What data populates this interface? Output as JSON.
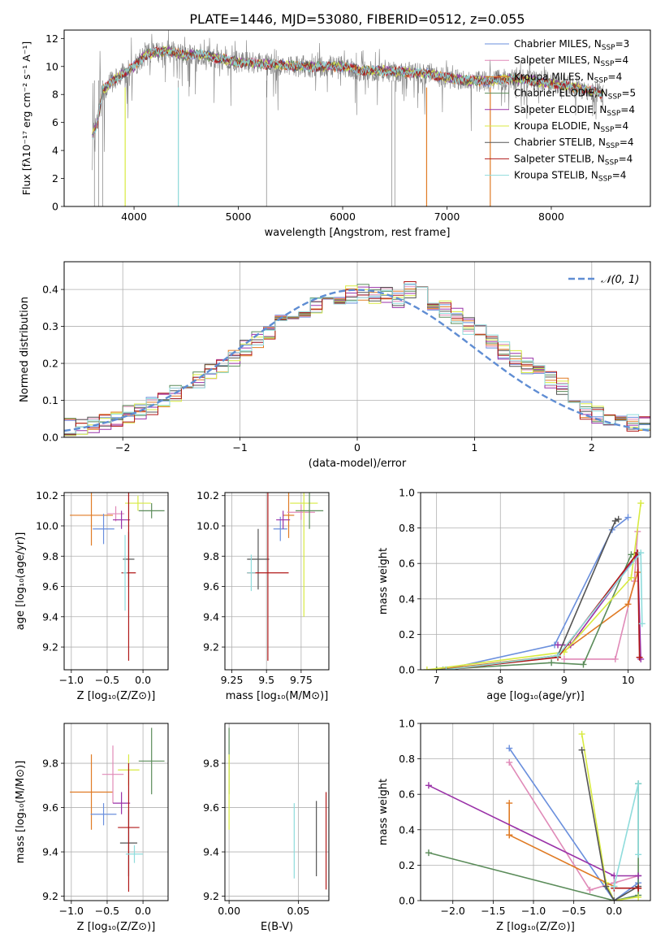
{
  "figure": {
    "title": "PLATE=1446, MJD=53080, FIBERID=0512, z=0.055"
  },
  "colors": {
    "cm": "#6a8fdd",
    "sm": "#e08ab8",
    "km": "#e07b24",
    "ce": "#5b8c5a",
    "se": "#9a32a8",
    "ke": "#d8ea40",
    "cs": "#555555",
    "ss": "#b01818",
    "ks": "#8fdcdc",
    "gauss": "#5f8dd3"
  },
  "chart_data": [
    {
      "id": "spectrum",
      "type": "line",
      "xlabel": "wavelength [Angstrom, rest frame]",
      "ylabel": "Flux [fλ10⁻¹⁷ erg cm⁻² s⁻¹ A⁻¹]",
      "xlim": [
        3330,
        8950
      ],
      "ylim": [
        0,
        12.6
      ],
      "xticks": [
        4000,
        5000,
        6000,
        7000,
        8000
      ],
      "yticks": [
        0,
        2,
        4,
        6,
        8,
        10,
        12
      ],
      "legend_position": "top-right",
      "data_color": "#808080",
      "data_continuum": {
        "x": [
          3600,
          3650,
          3700,
          3800,
          3900,
          4000,
          4100,
          4200,
          4300,
          4400,
          4500,
          4600,
          4800,
          5000,
          5200,
          5400,
          5600,
          5800,
          6000,
          6200,
          6400,
          6600,
          6800,
          7000,
          7200,
          7400,
          7600,
          7800,
          8000,
          8200,
          8400,
          8500
        ],
        "y": [
          5.0,
          6.0,
          8.3,
          9.0,
          9.5,
          10.0,
          10.8,
          11.0,
          11.1,
          11.0,
          10.8,
          10.9,
          10.6,
          10.3,
          10.2,
          10.1,
          10.0,
          10.0,
          10.0,
          9.7,
          9.7,
          9.6,
          9.5,
          9.2,
          9.0,
          8.95,
          9.1,
          9.0,
          8.8,
          8.55,
          8.2,
          8.0
        ]
      },
      "legend": [
        {
          "key": "cm",
          "label": "Chabrier MILES, N",
          "sub": "SSP",
          "tail": "=3"
        },
        {
          "key": "sm",
          "label": "Salpeter MILES, N",
          "sub": "SSP",
          "tail": "=4"
        },
        {
          "key": "km",
          "label": "Kroupa MILES, N",
          "sub": "SSP",
          "tail": "=4"
        },
        {
          "key": "ce",
          "label": "Chabrier ELODIE, N",
          "sub": "SSP",
          "tail": "=5"
        },
        {
          "key": "se",
          "label": "Salpeter ELODIE, N",
          "sub": "SSP",
          "tail": "=4"
        },
        {
          "key": "ke",
          "label": "Kroupa ELODIE, N",
          "sub": "SSP",
          "tail": "=4"
        },
        {
          "key": "cs",
          "label": "Chabrier STELIB, N",
          "sub": "SSP",
          "tail": "=4"
        },
        {
          "key": "ss",
          "label": "Salpeter STELIB, N",
          "sub": "SSP",
          "tail": "=4"
        },
        {
          "key": "ks",
          "label": "Kroupa STELIB, N",
          "sub": "SSP",
          "tail": "=4"
        }
      ]
    },
    {
      "id": "residual-histogram",
      "type": "bar",
      "xlabel": "(data-model)/error",
      "ylabel": "Normed distribution",
      "xlim": [
        -2.5,
        2.5
      ],
      "ylim": [
        0,
        0.475
      ],
      "xticks": [
        -2,
        -1,
        0,
        1,
        2
      ],
      "xtick_labels": [
        "−2",
        "−1",
        "0",
        "1",
        "2"
      ],
      "yticks": [
        0,
        0.1,
        0.2,
        0.3,
        0.4
      ],
      "grid": true,
      "bin_edges_range": [
        -2.5,
        2.5
      ],
      "bin_count": 50,
      "legend": [
        {
          "key": "gauss",
          "label": "𝒩(0, 1)"
        }
      ],
      "legend_position": "top-right",
      "series_keys": [
        "cm",
        "sm",
        "km",
        "ce",
        "se",
        "ke",
        "cs",
        "ss",
        "ks"
      ]
    },
    {
      "id": "age-vs-Z",
      "type": "scatter",
      "xlabel": "Z [log₁₀(Z/Z⊙)]",
      "ylabel": "age  [log₁₀(age/yr)]",
      "xlim": [
        -1.1,
        0.35
      ],
      "ylim": [
        9.05,
        10.22
      ],
      "xticks": [
        -1.0,
        -0.5,
        0.0
      ],
      "xtick_labels": [
        "−1.0",
        "−0.5",
        "0.0"
      ],
      "yticks": [
        9.2,
        9.4,
        9.6,
        9.8,
        10.0,
        10.2
      ],
      "grid": true,
      "points": [
        {
          "key": "km",
          "x": -0.72,
          "y": 10.07,
          "xerr": 0.3,
          "yerr": 0.2
        },
        {
          "key": "cm",
          "x": -0.55,
          "y": 9.98,
          "xerr": 0.15,
          "yerr": 0.1
        },
        {
          "key": "sm",
          "x": -0.38,
          "y": 10.08,
          "xerr": 0.12,
          "yerr": 0.05
        },
        {
          "key": "ke",
          "x": -0.07,
          "y": 10.15,
          "xerr": 0.18,
          "yerr": 0.05
        },
        {
          "key": "ce",
          "x": 0.12,
          "y": 10.1,
          "xerr": 0.18,
          "yerr": 0.05
        },
        {
          "key": "se",
          "x": -0.3,
          "y": 10.04,
          "xerr": 0.12,
          "yerr": 0.06
        },
        {
          "key": "cs",
          "x": -0.2,
          "y": 9.78,
          "xerr": 0.08,
          "yerr": 0.18
        },
        {
          "key": "ss",
          "x": -0.2,
          "y": 9.69,
          "xerr": 0.1,
          "yerr": 0.58
        },
        {
          "key": "ks",
          "x": -0.25,
          "y": 9.69,
          "xerr": 0.03,
          "yerr": 0.25
        }
      ]
    },
    {
      "id": "age-vs-mass",
      "type": "scatter",
      "xlabel": "mass [log₁₀(M/M⊙)]",
      "ylabel": "",
      "xlim": [
        9.2,
        9.95
      ],
      "ylim": [
        9.05,
        10.22
      ],
      "xticks": [
        9.25,
        9.5,
        9.75
      ],
      "yticks": [
        9.2,
        9.4,
        9.6,
        9.8,
        10.0,
        10.2
      ],
      "grid": true,
      "points": [
        {
          "key": "km",
          "x": 9.66,
          "y": 10.07,
          "xerr": 0.04,
          "yerr": 0.15
        },
        {
          "key": "cm",
          "x": 9.6,
          "y": 9.98,
          "xerr": 0.05,
          "yerr": 0.08
        },
        {
          "key": "sm",
          "x": 9.75,
          "y": 10.09,
          "xerr": 0.1,
          "yerr": 0.05
        },
        {
          "key": "ke",
          "x": 9.77,
          "y": 10.15,
          "xerr": 0.1,
          "yerr": 0.75
        },
        {
          "key": "ce",
          "x": 9.81,
          "y": 10.1,
          "xerr": 0.1,
          "yerr": 0.12
        },
        {
          "key": "se",
          "x": 9.62,
          "y": 10.04,
          "xerr": 0.05,
          "yerr": 0.06
        },
        {
          "key": "cs",
          "x": 9.44,
          "y": 9.78,
          "xerr": 0.08,
          "yerr": 0.2
        },
        {
          "key": "ss",
          "x": 9.51,
          "y": 9.69,
          "xerr": 0.15,
          "yerr": 0.58
        },
        {
          "key": "ks",
          "x": 9.39,
          "y": 9.69,
          "xerr": 0.03,
          "yerr": 0.12
        }
      ]
    },
    {
      "id": "mass-weight-vs-age",
      "type": "line",
      "xlabel": "age  [log₁₀(age/yr)]",
      "ylabel": "mass weight",
      "xlim": [
        6.75,
        10.35
      ],
      "ylim": [
        0,
        1.0
      ],
      "xticks": [
        7,
        8,
        9,
        10
      ],
      "yticks": [
        0.0,
        0.2,
        0.4,
        0.6,
        0.8,
        1.0
      ],
      "grid": true,
      "series": [
        {
          "key": "cm",
          "x": [
            7.1,
            8.85,
            9.75,
            10.0
          ],
          "y": [
            0.0,
            0.14,
            0.79,
            0.86
          ]
        },
        {
          "key": "sm",
          "x": [
            9.0,
            9.8,
            10.1,
            10.15
          ],
          "y": [
            0.06,
            0.06,
            0.5,
            0.78
          ]
        },
        {
          "key": "km",
          "x": [
            7.0,
            8.9,
            10.0,
            10.15
          ],
          "y": [
            0.0,
            0.08,
            0.37,
            0.55
          ]
        },
        {
          "key": "ce",
          "x": [
            7.0,
            8.8,
            9.3,
            10.05,
            10.15
          ],
          "y": [
            0.0,
            0.04,
            0.03,
            0.65,
            0.66
          ]
        },
        {
          "key": "se",
          "x": [
            8.9,
            9.1,
            10.15,
            10.2
          ],
          "y": [
            0.14,
            0.14,
            0.65,
            0.06
          ]
        },
        {
          "key": "ke",
          "x": [
            6.85,
            9.0,
            10.05,
            10.2
          ],
          "y": [
            0.0,
            0.1,
            0.52,
            0.94
          ]
        },
        {
          "key": "cs",
          "x": [
            7.15,
            8.9,
            9.8,
            9.85
          ],
          "y": [
            0.0,
            0.08,
            0.84,
            0.85
          ]
        },
        {
          "key": "ss",
          "x": [
            7.15,
            8.9,
            10.15,
            10.18
          ],
          "y": [
            0.0,
            0.07,
            0.66,
            0.07
          ]
        },
        {
          "key": "ks",
          "x": [
            7.15,
            8.9,
            10.2,
            10.22
          ],
          "y": [
            0.0,
            0.08,
            0.66,
            0.26
          ]
        }
      ]
    },
    {
      "id": "mass-vs-Z",
      "type": "scatter",
      "xlabel": "Z [log₁₀(Z/Z⊙)]",
      "ylabel": "mass [log₁₀(M/M⊙)]",
      "xlim": [
        -1.1,
        0.35
      ],
      "ylim": [
        9.18,
        9.98
      ],
      "xticks": [
        -1.0,
        -0.5,
        0.0
      ],
      "xtick_labels": [
        "−1.0",
        "−0.5",
        "0.0"
      ],
      "yticks": [
        9.2,
        9.4,
        9.6,
        9.8
      ],
      "grid": true,
      "points": [
        {
          "key": "km",
          "x": -0.72,
          "y": 9.67,
          "xerr": 0.3,
          "yerr": 0.17
        },
        {
          "key": "cm",
          "x": -0.55,
          "y": 9.57,
          "xerr": 0.18,
          "yerr": 0.05
        },
        {
          "key": "sm",
          "x": -0.42,
          "y": 9.75,
          "xerr": 0.15,
          "yerr": 0.13
        },
        {
          "key": "ke",
          "x": -0.2,
          "y": 9.77,
          "xerr": 0.15,
          "yerr": 0.07
        },
        {
          "key": "ce",
          "x": 0.12,
          "y": 9.81,
          "xerr": 0.18,
          "yerr": 0.15
        },
        {
          "key": "se",
          "x": -0.3,
          "y": 9.62,
          "xerr": 0.12,
          "yerr": 0.05
        },
        {
          "key": "cs",
          "x": -0.2,
          "y": 9.44,
          "xerr": 0.12,
          "yerr": 0.15
        },
        {
          "key": "ss",
          "x": -0.2,
          "y": 9.51,
          "xerr": 0.15,
          "yerr": 0.29
        },
        {
          "key": "ks",
          "x": -0.12,
          "y": 9.39,
          "xerr": 0.12,
          "yerr": 0.04
        }
      ]
    },
    {
      "id": "mass-vs-EBV",
      "type": "scatter",
      "xlabel": "E(B-V)",
      "ylabel": "",
      "xlim": [
        -0.003,
        0.072
      ],
      "ylim": [
        9.18,
        9.98
      ],
      "xticks": [
        0.0,
        0.05
      ],
      "xtick_labels": [
        "0.00",
        "0.05"
      ],
      "yticks": [
        9.2,
        9.4,
        9.6,
        9.8
      ],
      "grid": true,
      "points": [
        {
          "key": "ce",
          "x": 0.0,
          "y": 9.81,
          "xerr": 0.0,
          "yerr": 0.15
        },
        {
          "key": "ke",
          "x": 0.0,
          "y": 9.67,
          "xerr": 0.0,
          "yerr": 0.17
        },
        {
          "key": "ks",
          "x": 0.047,
          "y": 9.45,
          "xerr": 0.0,
          "yerr": 0.17
        },
        {
          "key": "cs",
          "x": 0.063,
          "y": 9.46,
          "xerr": 0.0,
          "yerr": 0.17
        },
        {
          "key": "ss",
          "x": 0.07,
          "y": 9.45,
          "xerr": 0.0,
          "yerr": 0.22
        }
      ]
    },
    {
      "id": "mass-weight-vs-Z",
      "type": "line",
      "xlabel": "Z [log₁₀(Z/Z⊙)]",
      "ylabel": "mass weight",
      "xlim": [
        -2.4,
        0.45
      ],
      "ylim": [
        0,
        1.0
      ],
      "xticks": [
        -2.0,
        -1.5,
        -1.0,
        -0.5,
        0.0
      ],
      "xtick_labels": [
        "−2.0",
        "−1.5",
        "−1.0",
        "−0.5",
        "0.0"
      ],
      "yticks": [
        0.0,
        0.2,
        0.4,
        0.6,
        0.8,
        1.0
      ],
      "grid": true,
      "series": [
        {
          "key": "cm",
          "x": [
            -1.3,
            0.0,
            0.3,
            0.3
          ],
          "y": [
            0.86,
            0.0,
            0.1,
            0.14
          ]
        },
        {
          "key": "sm",
          "x": [
            -1.3,
            -0.3,
            0.0,
            0.3
          ],
          "y": [
            0.78,
            0.06,
            0.1,
            0.14
          ]
        },
        {
          "key": "km",
          "x": [
            -1.3,
            -1.3,
            -1.3,
            0.0
          ],
          "y": [
            0.55,
            0.37,
            0.37,
            0.08
          ]
        },
        {
          "key": "ce",
          "x": [
            -2.3,
            0.0,
            0.3,
            0.3
          ],
          "y": [
            0.27,
            0.0,
            0.03,
            0.66
          ]
        },
        {
          "key": "se",
          "x": [
            -2.3,
            0.0,
            0.3
          ],
          "y": [
            0.65,
            0.14,
            0.14
          ]
        },
        {
          "key": "ke",
          "x": [
            -0.4,
            -0.1,
            0.0,
            0.3
          ],
          "y": [
            0.94,
            0.1,
            0.0,
            0.02
          ]
        },
        {
          "key": "cs",
          "x": [
            -0.4,
            -0.1,
            0.0,
            0.3
          ],
          "y": [
            0.85,
            0.08,
            0.0,
            0.08
          ]
        },
        {
          "key": "ss",
          "x": [
            0.0,
            0.3,
            0.3
          ],
          "y": [
            0.07,
            0.07,
            0.07
          ]
        },
        {
          "key": "ks",
          "x": [
            0.0,
            0.3,
            0.3
          ],
          "y": [
            0.08,
            0.66,
            0.26
          ]
        }
      ]
    }
  ]
}
